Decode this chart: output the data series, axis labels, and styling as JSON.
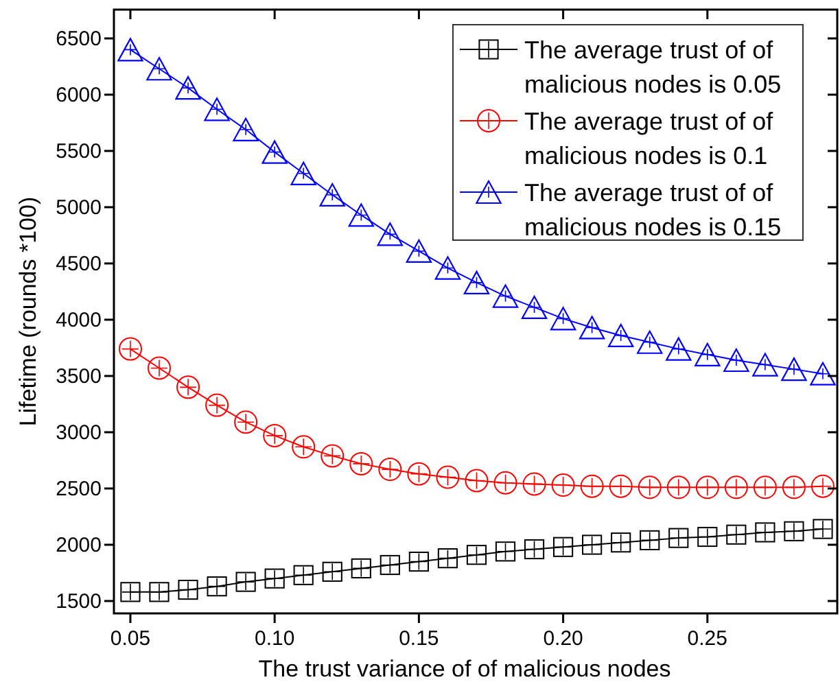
{
  "chart_data": {
    "type": "line",
    "xlabel": "The trust variance of of malicious nodes",
    "ylabel": "Lifetime  (rounds *100)",
    "x": [
      0.05,
      0.06,
      0.07,
      0.08,
      0.09,
      0.1,
      0.11,
      0.12,
      0.13,
      0.14,
      0.15,
      0.16,
      0.17,
      0.18,
      0.19,
      0.2,
      0.21,
      0.22,
      0.23,
      0.24,
      0.25,
      0.26,
      0.27,
      0.28,
      0.29
    ],
    "xlim": [
      0.0443,
      0.295
    ],
    "xticks": [
      {
        "value": 0.05,
        "label": "0.05"
      },
      {
        "value": 0.1,
        "label": "0.10"
      },
      {
        "value": 0.15,
        "label": "0.15"
      },
      {
        "value": 0.2,
        "label": "0.20"
      },
      {
        "value": 0.25,
        "label": "0.25"
      }
    ],
    "ylim": [
      1390,
      6756
    ],
    "yticks": [
      1500,
      2000,
      2500,
      3000,
      3500,
      4000,
      4500,
      5000,
      5500,
      6000,
      6500
    ],
    "legend": "top right",
    "grid": false,
    "series": [
      {
        "name": "The average trust of of malicious nodes is 0.05",
        "color": "#000000",
        "marker": "square",
        "values": [
          1580,
          1580,
          1600,
          1630,
          1670,
          1700,
          1730,
          1760,
          1790,
          1820,
          1850,
          1880,
          1910,
          1940,
          1960,
          1980,
          2000,
          2020,
          2040,
          2060,
          2070,
          2090,
          2110,
          2120,
          2140
        ]
      },
      {
        "name": "The average trust of of malicious nodes is 0.1",
        "color": "#ff0000",
        "marker": "circle",
        "values": [
          3740,
          3570,
          3400,
          3240,
          3090,
          2970,
          2870,
          2790,
          2720,
          2670,
          2630,
          2600,
          2570,
          2550,
          2540,
          2530,
          2520,
          2520,
          2510,
          2510,
          2510,
          2510,
          2510,
          2510,
          2520
        ]
      },
      {
        "name": "The average trust of of malicious nodes is 0.15",
        "color": "#0000ff",
        "marker": "triangle",
        "values": [
          6400,
          6230,
          6060,
          5870,
          5690,
          5490,
          5300,
          5110,
          4930,
          4760,
          4610,
          4460,
          4330,
          4210,
          4110,
          4010,
          3930,
          3860,
          3800,
          3740,
          3690,
          3640,
          3600,
          3560,
          3520
        ]
      }
    ]
  }
}
